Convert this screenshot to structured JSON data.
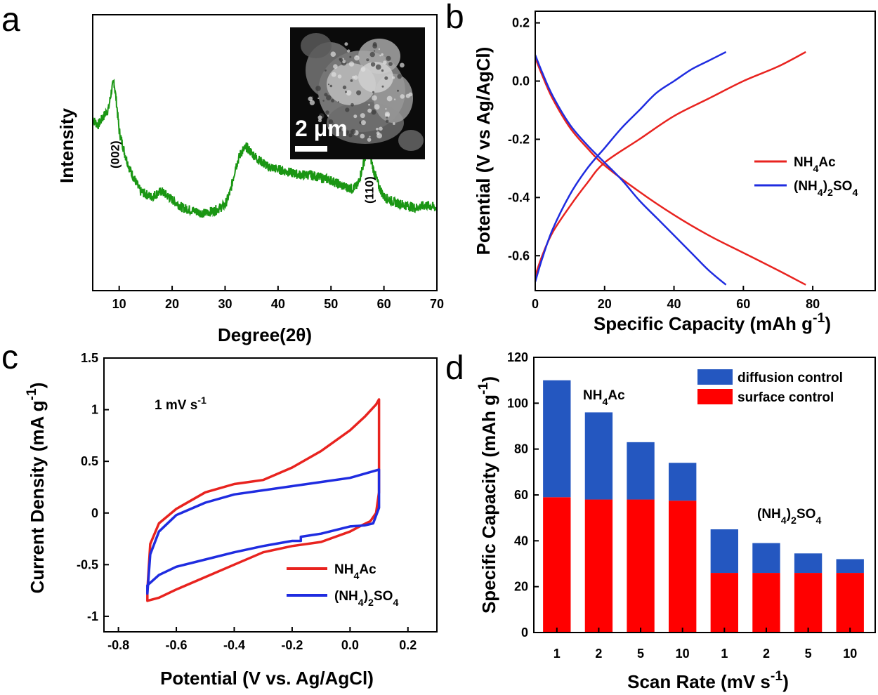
{
  "chart_data": [
    {
      "panel": "a",
      "type": "line",
      "xlabel": "Degree(2θ)",
      "ylabel": "Intensity",
      "xlim": [
        5,
        70
      ],
      "xticks": [
        10,
        20,
        30,
        40,
        50,
        60,
        70
      ],
      "series": [
        {
          "color": "#1a9613",
          "x": [
            5,
            6,
            7,
            8,
            8.5,
            9,
            9.5,
            10,
            11,
            12,
            13,
            14,
            16,
            18,
            20,
            22,
            24,
            26,
            28,
            30,
            31,
            32,
            33,
            34,
            35,
            36,
            38,
            40,
            42,
            44,
            46,
            48,
            50,
            52,
            54,
            55,
            56,
            57,
            58,
            59,
            60,
            62,
            64,
            66,
            68,
            70
          ],
          "y": [
            0.62,
            0.6,
            0.63,
            0.66,
            0.72,
            0.76,
            0.68,
            0.58,
            0.5,
            0.44,
            0.4,
            0.36,
            0.34,
            0.36,
            0.33,
            0.3,
            0.29,
            0.28,
            0.29,
            0.31,
            0.36,
            0.45,
            0.5,
            0.52,
            0.5,
            0.48,
            0.45,
            0.44,
            0.43,
            0.42,
            0.42,
            0.41,
            0.4,
            0.38,
            0.37,
            0.38,
            0.45,
            0.52,
            0.44,
            0.38,
            0.34,
            0.32,
            0.31,
            0.3,
            0.31,
            0.3
          ]
        }
      ],
      "annotations": [
        {
          "text": "(002)",
          "x": 9.2
        },
        {
          "text": "(110)",
          "x": 57.2
        }
      ],
      "inset": {
        "scale_bar_label": "2 μm"
      }
    },
    {
      "panel": "b",
      "type": "line",
      "xlabel": "Specific Capacity (mAh g⁻¹)",
      "ylabel": "Potential (V vs Ag/AgCl)",
      "xlim": [
        0,
        98
      ],
      "ylim": [
        -0.72,
        0.24
      ],
      "xticks": [
        0,
        20,
        40,
        60,
        80
      ],
      "yticks": [
        -0.6,
        -0.4,
        -0.2,
        0.0,
        0.2
      ],
      "legend_position": "right",
      "series": [
        {
          "name": "NH₄Ac",
          "color": "#e8231f",
          "x": [
            0,
            2,
            5,
            10,
            15,
            20,
            30,
            40,
            50,
            60,
            70,
            78
          ],
          "y": [
            -0.67,
            -0.6,
            -0.52,
            -0.43,
            -0.35,
            -0.28,
            -0.2,
            -0.12,
            -0.06,
            0.0,
            0.05,
            0.1
          ]
        },
        {
          "name": "NH₄Ac",
          "color": "#e8231f",
          "x": [
            0,
            2,
            5,
            10,
            15,
            20,
            30,
            40,
            50,
            60,
            70,
            78
          ],
          "y": [
            0.08,
            0.02,
            -0.06,
            -0.16,
            -0.23,
            -0.29,
            -0.38,
            -0.46,
            -0.53,
            -0.59,
            -0.65,
            -0.7
          ]
        },
        {
          "name": "(NH₄)₂SO₄",
          "color": "#1f2ce0",
          "x": [
            0,
            2,
            5,
            10,
            15,
            20,
            25,
            30,
            35,
            40,
            45,
            50,
            55
          ],
          "y": [
            -0.69,
            -0.61,
            -0.51,
            -0.39,
            -0.3,
            -0.23,
            -0.16,
            -0.1,
            -0.04,
            0.0,
            0.04,
            0.07,
            0.1
          ]
        },
        {
          "name": "(NH₄)₂SO₄",
          "color": "#1f2ce0",
          "x": [
            0,
            2,
            5,
            10,
            15,
            20,
            25,
            30,
            35,
            40,
            45,
            50,
            55
          ],
          "y": [
            0.09,
            0.03,
            -0.05,
            -0.15,
            -0.22,
            -0.28,
            -0.34,
            -0.41,
            -0.47,
            -0.53,
            -0.59,
            -0.65,
            -0.7
          ]
        }
      ],
      "legend": [
        {
          "name": "NH₄Ac",
          "color": "#e8231f"
        },
        {
          "name": "(NH₄)₂SO₄",
          "color": "#1f2ce0"
        }
      ]
    },
    {
      "panel": "c",
      "type": "line",
      "xlabel": "Potential (V vs. Ag/AgCl)",
      "ylabel": "Current Density (mA g⁻¹)",
      "xlim": [
        -0.85,
        0.3
      ],
      "ylim": [
        -1.15,
        1.5
      ],
      "xticks": [
        -0.8,
        -0.6,
        -0.4,
        -0.2,
        0.0,
        0.2
      ],
      "xticklabels": [
        "-0.8",
        "-0.6",
        "-0.4",
        "-0.2",
        "0.0",
        "0.2"
      ],
      "yticks": [
        -1,
        -0.5,
        0,
        0.5,
        1,
        1.5
      ],
      "yticklabels": [
        "-1",
        "-0.5",
        "0",
        "0.5",
        "1",
        "1.5"
      ],
      "annotation": "1 mV s⁻¹",
      "legend_position": "bottom-right",
      "series": [
        {
          "name": "NH₄Ac",
          "color": "#e8231f",
          "x": [
            -0.7,
            -0.69,
            -0.66,
            -0.6,
            -0.5,
            -0.4,
            -0.35,
            -0.3,
            -0.2,
            -0.1,
            0.0,
            0.05,
            0.09,
            0.1,
            0.1,
            0.09,
            0.07,
            0.04,
            0.0,
            -0.1,
            -0.2,
            -0.3,
            -0.4,
            -0.5,
            -0.6,
            -0.66,
            -0.7,
            -0.7
          ],
          "y": [
            -0.75,
            -0.3,
            -0.1,
            0.04,
            0.2,
            0.28,
            0.3,
            0.32,
            0.44,
            0.6,
            0.8,
            0.93,
            1.05,
            1.1,
            0.2,
            0.0,
            -0.08,
            -0.12,
            -0.18,
            -0.28,
            -0.32,
            -0.38,
            -0.5,
            -0.62,
            -0.74,
            -0.82,
            -0.85,
            -0.75
          ]
        },
        {
          "name": "(NH₄)₂SO₄",
          "color": "#1f2ce0",
          "x": [
            -0.7,
            -0.69,
            -0.66,
            -0.6,
            -0.5,
            -0.4,
            -0.3,
            -0.2,
            -0.1,
            0.0,
            0.05,
            0.1,
            0.1,
            0.08,
            0.05,
            0.0,
            -0.1,
            -0.17,
            -0.17,
            -0.2,
            -0.3,
            -0.4,
            -0.5,
            -0.6,
            -0.66,
            -0.7,
            -0.7
          ],
          "y": [
            -0.78,
            -0.4,
            -0.18,
            -0.02,
            0.1,
            0.18,
            0.22,
            0.26,
            0.3,
            0.34,
            0.38,
            0.42,
            0.05,
            -0.1,
            -0.12,
            -0.13,
            -0.2,
            -0.23,
            -0.27,
            -0.27,
            -0.32,
            -0.38,
            -0.45,
            -0.52,
            -0.6,
            -0.7,
            -0.78
          ]
        }
      ]
    },
    {
      "panel": "d",
      "type": "bar",
      "xlabel": "Scan Rate (mV s⁻¹)",
      "ylabel": "Specific Capacity (mAh g⁻¹)",
      "ylim": [
        0,
        120
      ],
      "yticks": [
        0,
        20,
        40,
        60,
        80,
        100,
        120
      ],
      "categories": [
        "1",
        "2",
        "5",
        "10",
        "1",
        "2",
        "5",
        "10"
      ],
      "series": [
        {
          "name": "surface control",
          "color": "#ff0000",
          "values": [
            59,
            58,
            58,
            57.5,
            26,
            26,
            26,
            26
          ]
        },
        {
          "name": "diffusion control",
          "color": "#2457c0",
          "values": [
            51,
            38,
            25,
            16.5,
            19,
            13,
            8.5,
            6
          ]
        }
      ],
      "legend_position": "top-right",
      "group_labels": [
        {
          "text": "NH₄Ac"
        },
        {
          "text": "(NH₄)₂SO₄"
        }
      ]
    }
  ],
  "panel_letters": [
    "a",
    "b",
    "c",
    "d"
  ]
}
